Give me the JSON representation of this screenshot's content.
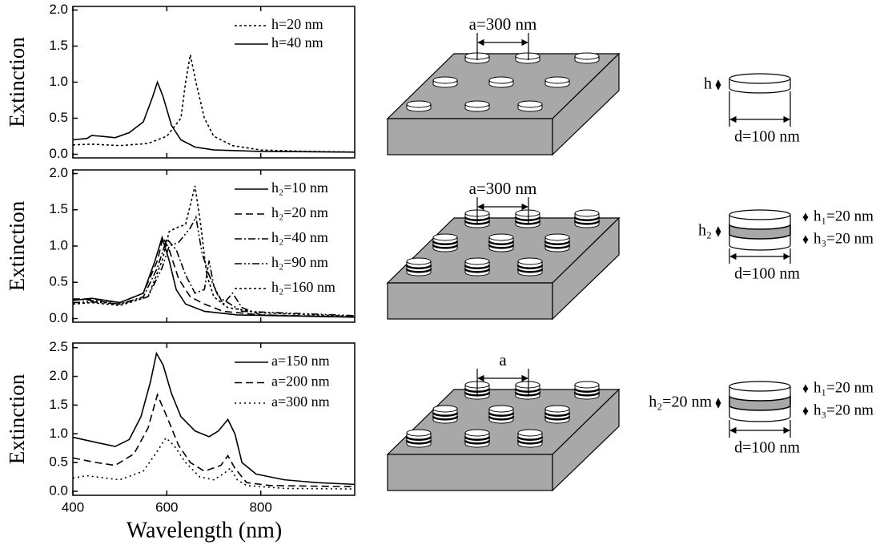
{
  "chart_data": [
    {
      "type": "line",
      "y_label": "Extinction",
      "xlim": [
        400,
        1000
      ],
      "xticks": [
        400,
        600,
        800
      ],
      "show_xtick_labels": false,
      "ylim": [
        -0.05,
        2.05
      ],
      "yticks": [
        {
          "value": 0,
          "label": "0.0"
        },
        {
          "value": 0.5,
          "label": "0.5"
        },
        {
          "value": 1,
          "label": "1.0"
        },
        {
          "value": 1.5,
          "label": "1.5"
        },
        {
          "value": 2,
          "label": "2.0"
        }
      ],
      "legend": "upper right",
      "series": [
        {
          "name": "h=20 nm",
          "color": "#000",
          "dash": "3,3",
          "x": [
            400,
            440,
            500,
            560,
            600,
            630,
            640,
            650,
            662,
            680,
            700,
            740,
            800,
            900,
            1000
          ],
          "values": [
            0.13,
            0.14,
            0.12,
            0.15,
            0.25,
            0.5,
            1.0,
            1.38,
            1.0,
            0.5,
            0.25,
            0.12,
            0.06,
            0.04,
            0.03
          ]
        },
        {
          "name": "h=40 nm",
          "color": "#000",
          "dash": "none",
          "x": [
            400,
            430,
            440,
            460,
            490,
            520,
            550,
            570,
            580,
            592,
            610,
            630,
            660,
            700,
            800,
            1000
          ],
          "values": [
            0.2,
            0.22,
            0.26,
            0.25,
            0.23,
            0.3,
            0.45,
            0.8,
            1.0,
            0.8,
            0.4,
            0.2,
            0.1,
            0.06,
            0.04,
            0.03
          ]
        }
      ]
    },
    {
      "type": "line",
      "y_label": "Extinction",
      "xlim": [
        400,
        1000
      ],
      "xticks": [
        400,
        600,
        800
      ],
      "show_xtick_labels": false,
      "ylim": [
        -0.05,
        2.05
      ],
      "yticks": [
        {
          "value": 0,
          "label": "0.0"
        },
        {
          "value": 0.5,
          "label": "0.5"
        },
        {
          "value": 1,
          "label": "1.0"
        },
        {
          "value": 1.5,
          "label": "1.5"
        },
        {
          "value": 2,
          "label": "2.0"
        }
      ],
      "legend": "upper right",
      "series": [
        {
          "name": "h₂=10 nm",
          "color": "#000",
          "dash": "none",
          "x": [
            400,
            440,
            500,
            550,
            575,
            590,
            605,
            620,
            640,
            680,
            750,
            1000
          ],
          "values": [
            0.25,
            0.28,
            0.22,
            0.35,
            0.8,
            1.12,
            0.8,
            0.4,
            0.2,
            0.1,
            0.05,
            0.02
          ]
        },
        {
          "name": "h₂=20 nm",
          "color": "#000",
          "dash": "9,5",
          "x": [
            400,
            440,
            500,
            550,
            580,
            592,
            605,
            625,
            650,
            680,
            720,
            800,
            1000
          ],
          "values": [
            0.27,
            0.27,
            0.22,
            0.35,
            0.8,
            1.12,
            0.95,
            0.55,
            0.3,
            0.2,
            0.1,
            0.05,
            0.02
          ]
        },
        {
          "name": "h₂=40 nm",
          "color": "#000",
          "dash": "9,3,2,3",
          "x": [
            400,
            440,
            500,
            550,
            580,
            600,
            620,
            640,
            660,
            680,
            690,
            700,
            720,
            740,
            760,
            800,
            1000
          ],
          "values": [
            0.27,
            0.25,
            0.2,
            0.3,
            0.7,
            1.1,
            0.95,
            0.6,
            0.35,
            0.4,
            0.8,
            0.45,
            0.2,
            0.35,
            0.15,
            0.05,
            0.02
          ]
        },
        {
          "name": "h₂=90 nm",
          "color": "#000",
          "dash": "9,3,2,3,2,3",
          "x": [
            400,
            440,
            500,
            560,
            590,
            605,
            625,
            650,
            662,
            675,
            690,
            710,
            760,
            1000
          ],
          "values": [
            0.22,
            0.23,
            0.2,
            0.3,
            0.7,
            1.0,
            1.05,
            1.25,
            1.4,
            0.9,
            0.6,
            0.3,
            0.1,
            0.04
          ]
        },
        {
          "name": "h₂=160 nm",
          "color": "#000",
          "dash": "3,3",
          "x": [
            400,
            440,
            500,
            560,
            590,
            605,
            620,
            640,
            660,
            672,
            685,
            700,
            730,
            800,
            1000
          ],
          "values": [
            0.2,
            0.22,
            0.18,
            0.3,
            0.8,
            1.2,
            1.25,
            1.3,
            1.83,
            1.3,
            0.6,
            0.3,
            0.15,
            0.08,
            0.03
          ]
        }
      ]
    },
    {
      "type": "line",
      "y_label": "Extinction",
      "x_label": "Wavelength (nm)",
      "xlim": [
        400,
        1000
      ],
      "xticks": [
        400,
        600,
        800
      ],
      "show_xtick_labels": true,
      "ylim": [
        -0.07,
        2.58
      ],
      "yticks": [
        {
          "value": 0,
          "label": "0.0"
        },
        {
          "value": 0.5,
          "label": "0.5"
        },
        {
          "value": 1,
          "label": "1.0"
        },
        {
          "value": 1.5,
          "label": "1.5"
        },
        {
          "value": 2,
          "label": "2.0"
        },
        {
          "value": 2.5,
          "label": "2.5"
        }
      ],
      "legend": "upper right",
      "series": [
        {
          "name": "a=150 nm",
          "color": "#000",
          "dash": "none",
          "x": [
            400,
            450,
            490,
            520,
            545,
            565,
            578,
            592,
            610,
            630,
            660,
            690,
            710,
            730,
            745,
            760,
            790,
            850,
            920,
            1000
          ],
          "values": [
            0.94,
            0.85,
            0.78,
            0.9,
            1.3,
            1.9,
            2.4,
            2.2,
            1.7,
            1.3,
            1.05,
            0.95,
            1.05,
            1.25,
            1.0,
            0.5,
            0.3,
            0.2,
            0.15,
            0.12
          ]
        },
        {
          "name": "a=200 nm",
          "color": "#000",
          "dash": "9,5",
          "x": [
            400,
            450,
            490,
            530,
            560,
            580,
            600,
            625,
            650,
            680,
            715,
            730,
            745,
            770,
            820,
            1000
          ],
          "values": [
            0.58,
            0.5,
            0.45,
            0.65,
            1.1,
            1.68,
            1.3,
            0.8,
            0.5,
            0.35,
            0.45,
            0.62,
            0.4,
            0.15,
            0.1,
            0.08
          ]
        },
        {
          "name": "a=300 nm",
          "color": "#000",
          "dash": "2,4",
          "x": [
            400,
            430,
            500,
            550,
            580,
            598,
            615,
            640,
            670,
            700,
            720,
            735,
            750,
            770,
            850,
            1000
          ],
          "values": [
            0.23,
            0.27,
            0.2,
            0.35,
            0.7,
            0.93,
            0.8,
            0.5,
            0.25,
            0.2,
            0.3,
            0.4,
            0.2,
            0.1,
            0.05,
            0.04
          ]
        }
      ]
    }
  ],
  "diagrams": [
    {
      "period": "a=300 nm",
      "height": "h",
      "diameter": "d=100 nm"
    },
    {
      "period": "a=300 nm",
      "height": "h₂",
      "top_layer": "h₁=20 nm",
      "bottom_layer": "h₃=20 nm",
      "diameter": "d=100 nm"
    },
    {
      "period": "a",
      "height": "h₂=20 nm",
      "top_layer": "h₁=20 nm",
      "bottom_layer": "h₃=20 nm",
      "diameter": "d=100 nm"
    }
  ]
}
